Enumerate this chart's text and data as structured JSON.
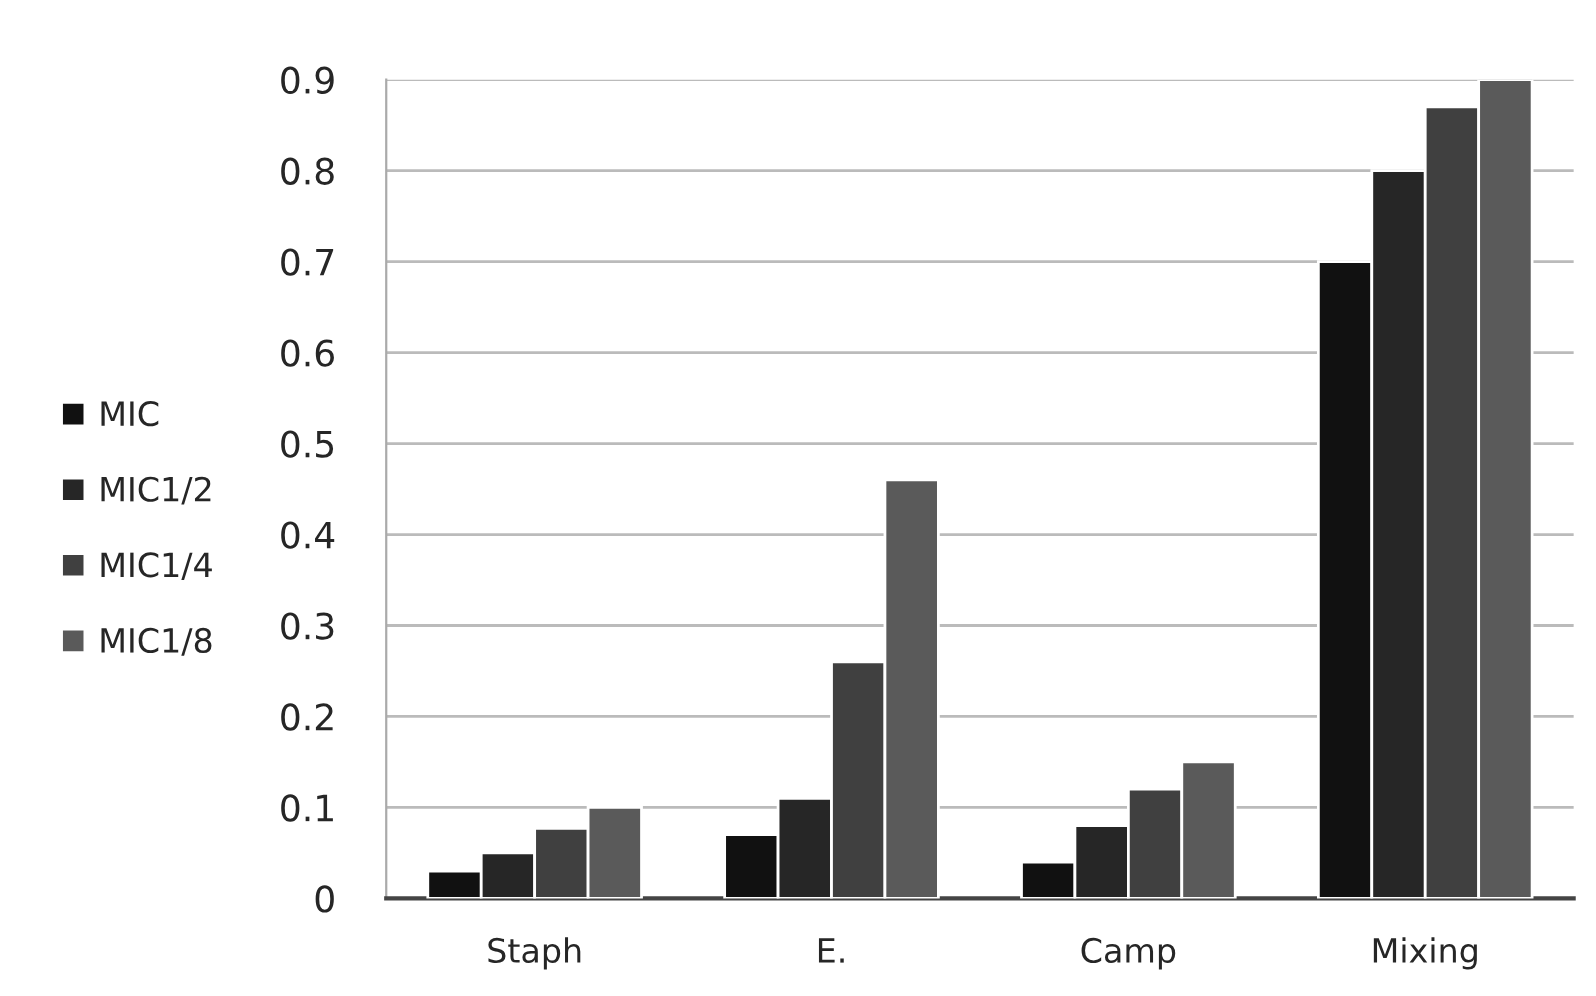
{
  "chart_data": {
    "type": "bar",
    "categories": [
      "Staph",
      "E.",
      "Camp",
      "Mixing"
    ],
    "series": [
      {
        "name": "MIC",
        "color": "#111111",
        "values": [
          0.03,
          0.07,
          0.04,
          0.7
        ]
      },
      {
        "name": "MIC1/2",
        "color": "#262626",
        "values": [
          0.05,
          0.11,
          0.08,
          0.8
        ]
      },
      {
        "name": "MIC1/4",
        "color": "#404040",
        "values": [
          0.077,
          0.26,
          0.12,
          0.87
        ]
      },
      {
        "name": "MIC1/8",
        "color": "#5a5a5a",
        "values": [
          0.1,
          0.46,
          0.15,
          0.9
        ]
      }
    ],
    "ylim": [
      0,
      0.9
    ],
    "yticks": [
      0,
      0.1,
      0.2,
      0.3,
      0.4,
      0.5,
      0.6,
      0.7,
      0.8,
      0.9
    ],
    "grid": "y",
    "legend": "left"
  }
}
